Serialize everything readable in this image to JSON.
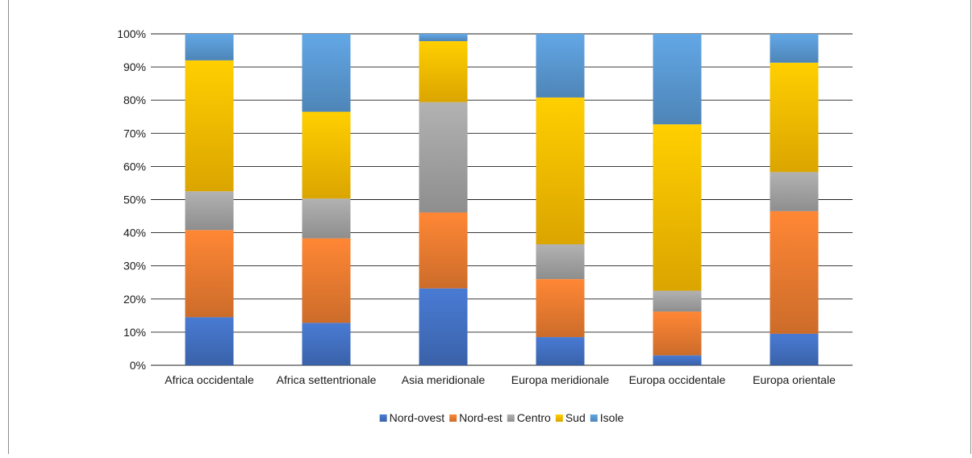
{
  "chart_data": {
    "type": "bar",
    "stacked": true,
    "normalized": true,
    "categories": [
      "Africa occidentale",
      "Africa settentrionale",
      "Asia meridionale",
      "Europa meridionale",
      "Europa occidentale",
      "Europa orientale"
    ],
    "series": [
      {
        "name": "Nord-ovest",
        "color": "#4472c4",
        "values": [
          14.5,
          12.8,
          23.2,
          8.5,
          3.0,
          9.5
        ]
      },
      {
        "name": "Nord-est",
        "color": "#ed7d31",
        "values": [
          26.3,
          25.5,
          22.9,
          17.5,
          13.2,
          37.0
        ]
      },
      {
        "name": "Centro",
        "color": "#a5a5a5",
        "values": [
          11.7,
          12.0,
          33.3,
          10.5,
          6.3,
          11.8
        ]
      },
      {
        "name": "Sud",
        "color": "#ffc000",
        "values": [
          39.5,
          26.2,
          18.4,
          44.3,
          50.2,
          33.0
        ]
      },
      {
        "name": "Isole",
        "color": "#5b9bd5",
        "values": [
          8.0,
          23.5,
          2.2,
          19.2,
          27.3,
          8.7
        ]
      }
    ],
    "ylim": [
      0,
      100
    ],
    "y_ticks": [
      "0%",
      "10%",
      "20%",
      "30%",
      "40%",
      "50%",
      "60%",
      "70%",
      "80%",
      "90%",
      "100%"
    ],
    "grid": true,
    "legend_position": "bottom"
  }
}
